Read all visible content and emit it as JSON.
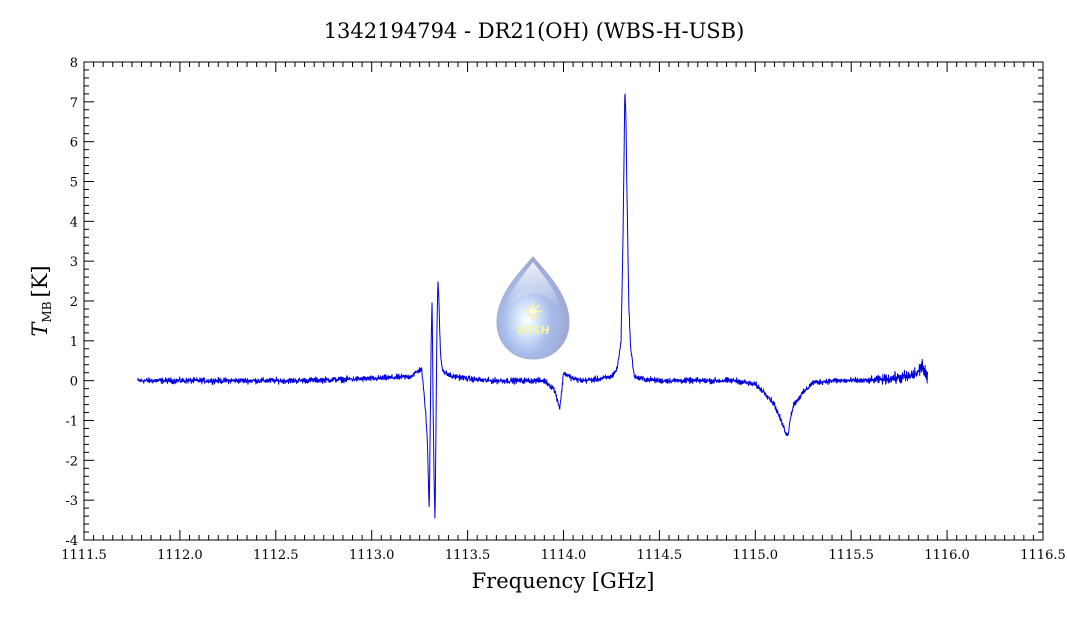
{
  "chart_data": {
    "type": "line",
    "title": "1342194794 - DR21(OH) (WBS-H-USB)",
    "xlabel": "Frequency [GHz]",
    "ylabel_main": "T",
    "ylabel_sub": "MB",
    "ylabel_unit": "[K]",
    "xlim": [
      1111.5,
      1116.5
    ],
    "ylim": [
      -4,
      8
    ],
    "xticks": [
      "1111.5",
      "1112.0",
      "1112.5",
      "1113.0",
      "1113.5",
      "1114.0",
      "1114.5",
      "1115.0",
      "1115.5",
      "1116.0",
      "1116.5"
    ],
    "yticks": [
      "-4",
      "-3",
      "-2",
      "-1",
      "0",
      "1",
      "2",
      "3",
      "4",
      "5",
      "6",
      "7",
      "8"
    ],
    "grid": false,
    "series": [
      {
        "color": "#0000dd",
        "x": [
          1111.78,
          1112.2,
          1112.6,
          1113.0,
          1113.2,
          1113.26,
          1113.28,
          1113.29,
          1113.3,
          1113.31,
          1113.315,
          1113.32,
          1113.325,
          1113.33,
          1113.335,
          1113.34,
          1113.345,
          1113.35,
          1113.355,
          1113.36,
          1113.365,
          1113.37,
          1113.38,
          1113.4,
          1113.42,
          1113.45,
          1113.5,
          1113.6,
          1113.7,
          1113.8,
          1113.9,
          1113.95,
          1113.97,
          1113.98,
          1113.99,
          1114.0,
          1114.05,
          1114.1,
          1114.2,
          1114.25,
          1114.28,
          1114.3,
          1114.31,
          1114.32,
          1114.325,
          1114.33,
          1114.34,
          1114.35,
          1114.37,
          1114.4,
          1114.5,
          1114.7,
          1114.9,
          1115.0,
          1115.05,
          1115.1,
          1115.15,
          1115.17,
          1115.18,
          1115.2,
          1115.25,
          1115.3,
          1115.4,
          1115.6,
          1115.8,
          1115.85,
          1115.87,
          1115.9
        ],
        "y": [
          0.0,
          0.0,
          0.0,
          0.05,
          0.1,
          0.3,
          -0.7,
          -1.5,
          -3.3,
          1.0,
          2.1,
          -0.6,
          -2.4,
          -3.6,
          -1.2,
          1.2,
          2.5,
          2.1,
          1.2,
          0.6,
          0.4,
          0.3,
          0.2,
          0.15,
          0.1,
          0.1,
          0.05,
          0.0,
          0.0,
          0.0,
          0.0,
          -0.2,
          -0.5,
          -0.7,
          -0.3,
          0.2,
          0.05,
          0.0,
          0.05,
          0.1,
          0.3,
          1.0,
          3.5,
          7.3,
          6.8,
          5.0,
          2.0,
          0.8,
          0.1,
          0.05,
          0.0,
          0.0,
          0.0,
          -0.1,
          -0.3,
          -0.6,
          -1.2,
          -1.4,
          -1.0,
          -0.6,
          -0.3,
          -0.05,
          0.0,
          0.0,
          0.1,
          0.2,
          0.4,
          0.0
        ]
      }
    ],
    "watermark": "WISH"
  }
}
